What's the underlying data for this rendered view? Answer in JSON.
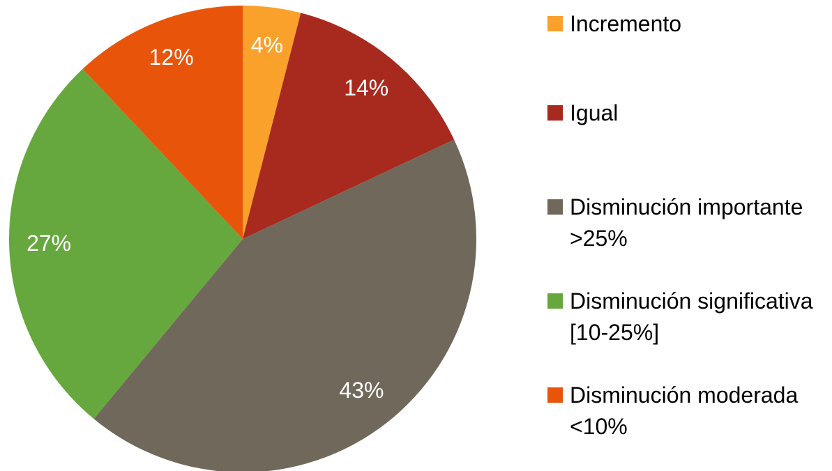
{
  "chart_data": {
    "type": "pie",
    "categories": [
      "Incremento",
      "Igual",
      "Disminución importante >25%",
      "Disminución significativa [10-25%]",
      "Disminución moderada <10%"
    ],
    "values": [
      4,
      14,
      43,
      27,
      12
    ],
    "value_labels": [
      "4%",
      "14%",
      "43%",
      "27%",
      "12%"
    ],
    "colors": [
      "#F9A12B",
      "#A82A1E",
      "#70695B",
      "#66A83E",
      "#E8550A"
    ],
    "legend": "right"
  }
}
